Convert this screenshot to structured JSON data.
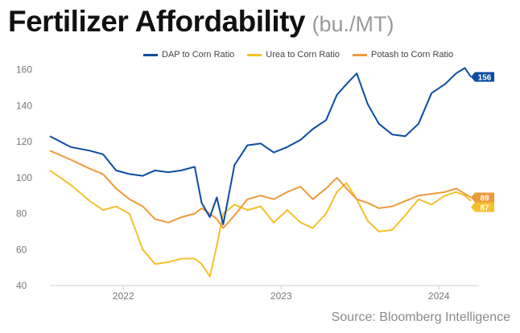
{
  "header": {
    "title": "Fertilizer Affordability",
    "subtitle": "(bu./MT)"
  },
  "source": "Source: Bloomberg Intelligence",
  "colors": {
    "dap": "#0b4da2",
    "urea": "#f5c02a",
    "potash": "#ee9a3a",
    "axis": "#cfcfcf",
    "text": "#777777"
  },
  "chart_data": {
    "type": "line",
    "title": "Fertilizer Affordability",
    "subtitle": "(bu./MT)",
    "x_ticks": [
      "2022",
      "2023",
      "2024"
    ],
    "y_ticks": [
      40,
      60,
      80,
      100,
      120,
      140,
      160
    ],
    "ylim": [
      40,
      163
    ],
    "xlim": [
      "2021-07-15",
      "2024-03-15"
    ],
    "grid": false,
    "legend_position": "top",
    "x": [
      "2021-07-15",
      "2021-09-01",
      "2021-10-15",
      "2021-11-15",
      "2021-12-15",
      "2022-01-15",
      "2022-02-15",
      "2022-03-15",
      "2022-04-15",
      "2022-05-15",
      "2022-06-15",
      "2022-07-01",
      "2022-07-20",
      "2022-08-05",
      "2022-08-20",
      "2022-09-15",
      "2022-10-15",
      "2022-11-15",
      "2022-12-15",
      "2023-01-15",
      "2023-02-15",
      "2023-03-15",
      "2023-04-15",
      "2023-05-10",
      "2023-06-01",
      "2023-06-25",
      "2023-07-20",
      "2023-08-15",
      "2023-09-15",
      "2023-10-15",
      "2023-11-15",
      "2023-12-15",
      "2024-01-15",
      "2024-02-10",
      "2024-03-01",
      "2024-03-15"
    ],
    "series": [
      {
        "name": "DAP to Corn Ratio",
        "end_label": "156",
        "values": [
          123,
          117,
          115,
          113,
          104,
          102,
          101,
          104,
          103,
          104,
          106,
          86,
          78,
          89,
          74,
          107,
          118,
          119,
          114,
          117,
          121,
          127,
          132,
          146,
          152,
          158,
          141,
          130,
          124,
          123,
          130,
          147,
          152,
          158,
          161,
          156
        ]
      },
      {
        "name": "Urea to Corn Ratio",
        "end_label": "87",
        "values": [
          104,
          96,
          87,
          82,
          84,
          80,
          60,
          52,
          53,
          55,
          55,
          52,
          45,
          62,
          80,
          85,
          82,
          84,
          75,
          82,
          75,
          72,
          80,
          92,
          97,
          88,
          76,
          70,
          71,
          79,
          88,
          85,
          90,
          92,
          90,
          87
        ]
      },
      {
        "name": "Potash to Corn Ratio",
        "end_label": "89",
        "values": [
          115,
          110,
          105,
          102,
          94,
          88,
          84,
          77,
          75,
          78,
          80,
          83,
          80,
          77,
          72,
          79,
          88,
          90,
          88,
          92,
          95,
          88,
          94,
          100,
          94,
          88,
          86,
          83,
          84,
          87,
          90,
          91,
          92,
          94,
          91,
          89
        ]
      }
    ]
  }
}
